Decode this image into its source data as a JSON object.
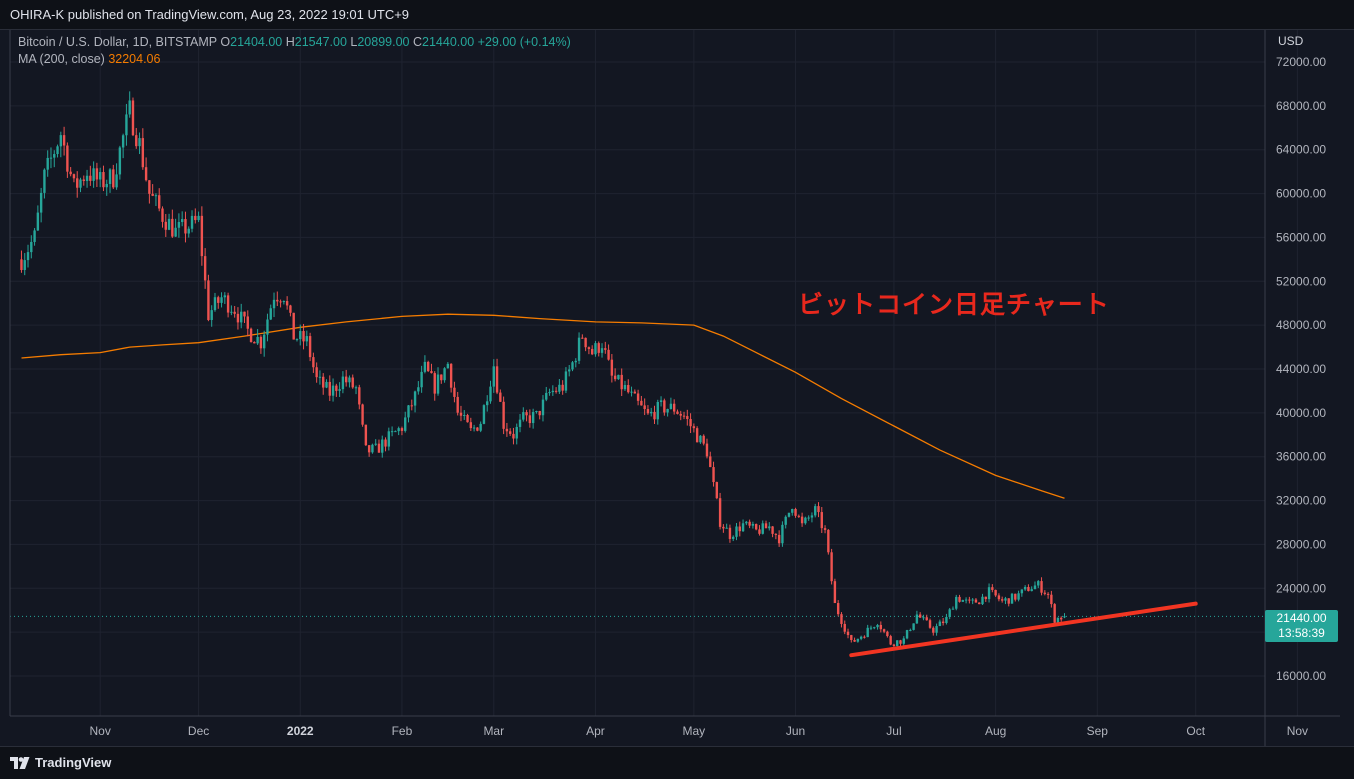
{
  "header": {
    "publisher_text": "OHIRA-K published on TradingView.com, Aug 23, 2022 19:01 UTC+9"
  },
  "legend": {
    "symbol": "Bitcoin / U.S. Dollar, 1D, BITSTAMP",
    "o_label": "O",
    "o_value": "21404.00",
    "h_label": "H",
    "h_value": "21547.00",
    "l_label": "L",
    "l_value": "20899.00",
    "c_label": "C",
    "c_value": "21440.00",
    "change": "+29.00 (+0.14%)",
    "ma_label": "MA (200, close)",
    "ma_value": "32204.06"
  },
  "axis": {
    "currency_label": "USD"
  },
  "price_tag": {
    "price": "21440.00",
    "countdown": "13:58:39"
  },
  "annotation": {
    "text": "ビットコイン日足チャート"
  },
  "footer": {
    "brand": "TradingView"
  },
  "colors": {
    "up": "#26a69a",
    "down": "#ef5350",
    "ma": "#f57c00",
    "trendline": "#f23522",
    "background": "#131722"
  },
  "chart_data": {
    "type": "candlestick",
    "ylim": [
      12000,
      74000
    ],
    "y_ticks": [
      "72000.00",
      "68000.00",
      "64000.00",
      "60000.00",
      "56000.00",
      "52000.00",
      "48000.00",
      "44000.00",
      "40000.00",
      "36000.00",
      "32000.00",
      "28000.00",
      "24000.00",
      "20000.00",
      "16000.00"
    ],
    "x_ticks": [
      {
        "label": "Nov",
        "date": "2021-11-01"
      },
      {
        "label": "Dec",
        "date": "2021-12-01"
      },
      {
        "label": "2022",
        "date": "2022-01-01",
        "year": true
      },
      {
        "label": "Feb",
        "date": "2022-02-01"
      },
      {
        "label": "Mar",
        "date": "2022-03-01"
      },
      {
        "label": "Apr",
        "date": "2022-04-01"
      },
      {
        "label": "May",
        "date": "2022-05-01"
      },
      {
        "label": "Jun",
        "date": "2022-06-01"
      },
      {
        "label": "Jul",
        "date": "2022-07-01"
      },
      {
        "label": "Aug",
        "date": "2022-08-01"
      },
      {
        "label": "Sep",
        "date": "2022-09-01"
      },
      {
        "label": "Oct",
        "date": "2022-10-01"
      },
      {
        "label": "Nov",
        "date": "2022-11-01"
      }
    ],
    "series": [
      {
        "name": "BTCUSD close",
        "points": [
          [
            "2021-10-08",
            54000
          ],
          [
            "2021-10-12",
            56000
          ],
          [
            "2021-10-15",
            61500
          ],
          [
            "2021-10-20",
            65500
          ],
          [
            "2021-10-24",
            60500
          ],
          [
            "2021-10-28",
            62000
          ],
          [
            "2021-11-01",
            61000
          ],
          [
            "2021-11-05",
            61500
          ],
          [
            "2021-11-10",
            67500
          ],
          [
            "2021-11-13",
            64500
          ],
          [
            "2021-11-16",
            60000
          ],
          [
            "2021-11-20",
            58000
          ],
          [
            "2021-11-24",
            56500
          ],
          [
            "2021-11-28",
            57000
          ],
          [
            "2021-12-01",
            57500
          ],
          [
            "2021-12-04",
            49000
          ],
          [
            "2021-12-08",
            50500
          ],
          [
            "2021-12-12",
            49500
          ],
          [
            "2021-12-16",
            47500
          ],
          [
            "2021-12-20",
            46500
          ],
          [
            "2021-12-24",
            50800
          ],
          [
            "2021-12-27",
            50800
          ],
          [
            "2021-12-30",
            47000
          ],
          [
            "2022-01-03",
            46500
          ],
          [
            "2022-01-06",
            43000
          ],
          [
            "2022-01-10",
            41800
          ],
          [
            "2022-01-14",
            43100
          ],
          [
            "2022-01-18",
            42200
          ],
          [
            "2022-01-21",
            36500
          ],
          [
            "2022-01-24",
            36600
          ],
          [
            "2022-01-28",
            37700
          ],
          [
            "2022-02-01",
            38700
          ],
          [
            "2022-02-05",
            41500
          ],
          [
            "2022-02-08",
            44000
          ],
          [
            "2022-02-11",
            42400
          ],
          [
            "2022-02-15",
            44500
          ],
          [
            "2022-02-18",
            40000
          ],
          [
            "2022-02-22",
            38300
          ],
          [
            "2022-02-25",
            39200
          ],
          [
            "2022-03-01",
            44400
          ],
          [
            "2022-03-04",
            39000
          ],
          [
            "2022-03-07",
            38000
          ],
          [
            "2022-03-10",
            39400
          ],
          [
            "2022-03-14",
            39700
          ],
          [
            "2022-03-18",
            41800
          ],
          [
            "2022-03-22",
            42400
          ],
          [
            "2022-03-25",
            44500
          ],
          [
            "2022-03-28",
            47100
          ],
          [
            "2022-03-31",
            45500
          ],
          [
            "2022-04-03",
            46400
          ],
          [
            "2022-04-06",
            43200
          ],
          [
            "2022-04-10",
            42200
          ],
          [
            "2022-04-13",
            41100
          ],
          [
            "2022-04-17",
            39700
          ],
          [
            "2022-04-21",
            40500
          ],
          [
            "2022-04-25",
            40400
          ],
          [
            "2022-04-28",
            39700
          ],
          [
            "2022-05-01",
            38400
          ],
          [
            "2022-05-05",
            36500
          ],
          [
            "2022-05-09",
            30100
          ],
          [
            "2022-05-12",
            28900
          ],
          [
            "2022-05-16",
            29800
          ],
          [
            "2022-05-20",
            29200
          ],
          [
            "2022-05-24",
            29600
          ],
          [
            "2022-05-27",
            28600
          ],
          [
            "2022-05-31",
            31700
          ],
          [
            "2022-06-03",
            29700
          ],
          [
            "2022-06-07",
            31100
          ],
          [
            "2022-06-10",
            29100
          ],
          [
            "2022-06-13",
            22500
          ],
          [
            "2022-06-18",
            19000
          ],
          [
            "2022-06-22",
            19900
          ],
          [
            "2022-06-26",
            21000
          ],
          [
            "2022-06-30",
            19000
          ],
          [
            "2022-07-04",
            19300
          ],
          [
            "2022-07-08",
            21600
          ],
          [
            "2022-07-13",
            20200
          ],
          [
            "2022-07-17",
            21200
          ],
          [
            "2022-07-20",
            23200
          ],
          [
            "2022-07-24",
            22600
          ],
          [
            "2022-07-27",
            22900
          ],
          [
            "2022-07-30",
            23700
          ],
          [
            "2022-08-03",
            22800
          ],
          [
            "2022-08-07",
            23200
          ],
          [
            "2022-08-11",
            24000
          ],
          [
            "2022-08-14",
            24300
          ],
          [
            "2022-08-17",
            23400
          ],
          [
            "2022-08-19",
            21200
          ],
          [
            "2022-08-22",
            21440
          ]
        ]
      },
      {
        "name": "MA (200, close)",
        "points": [
          [
            "2021-10-08",
            45000
          ],
          [
            "2021-10-20",
            45300
          ],
          [
            "2021-11-01",
            45500
          ],
          [
            "2021-11-10",
            46000
          ],
          [
            "2021-11-20",
            46200
          ],
          [
            "2021-12-01",
            46400
          ],
          [
            "2021-12-15",
            47000
          ],
          [
            "2022-01-01",
            47800
          ],
          [
            "2022-01-15",
            48300
          ],
          [
            "2022-02-01",
            48800
          ],
          [
            "2022-02-15",
            49000
          ],
          [
            "2022-03-01",
            48900
          ],
          [
            "2022-03-15",
            48600
          ],
          [
            "2022-04-01",
            48300
          ],
          [
            "2022-04-15",
            48200
          ],
          [
            "2022-05-01",
            48000
          ],
          [
            "2022-05-10",
            47000
          ],
          [
            "2022-05-20",
            45500
          ],
          [
            "2022-06-01",
            43700
          ],
          [
            "2022-06-15",
            41300
          ],
          [
            "2022-07-01",
            38800
          ],
          [
            "2022-07-15",
            36600
          ],
          [
            "2022-08-01",
            34300
          ],
          [
            "2022-08-15",
            32900
          ],
          [
            "2022-08-22",
            32204
          ]
        ]
      },
      {
        "name": "Trendline",
        "points": [
          [
            "2022-06-18",
            17900
          ],
          [
            "2022-10-01",
            22600
          ]
        ]
      }
    ],
    "grid": true
  }
}
